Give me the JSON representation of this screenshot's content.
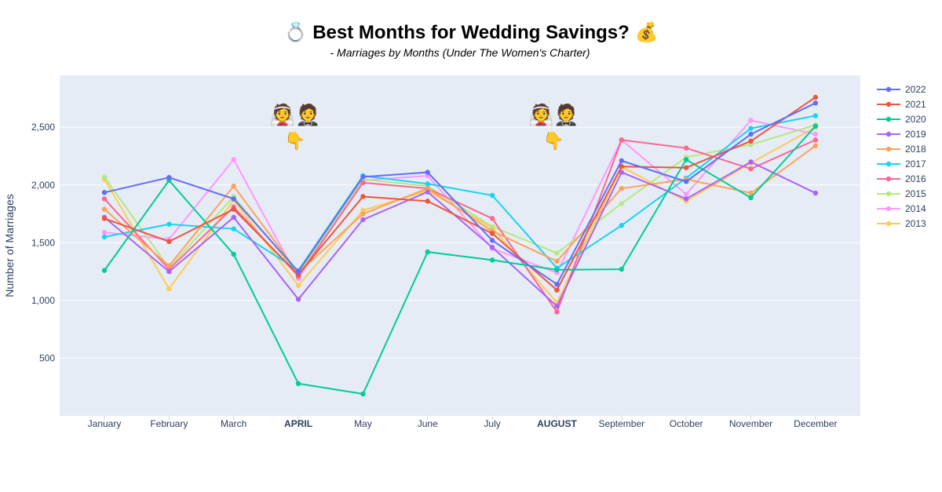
{
  "chart_data": {
    "type": "line",
    "title": "💍 Best Months for Wedding Savings? 💰",
    "subtitle": "- Marriages by Months (Under The Women's Charter)",
    "xlabel": "",
    "ylabel": "Number of Marriages",
    "categories": [
      "January",
      "February",
      "March",
      "APRIL",
      "May",
      "June",
      "July",
      "AUGUST",
      "September",
      "October",
      "November",
      "December"
    ],
    "highlighted_categories": [
      "APRIL",
      "AUGUST"
    ],
    "ylim": [
      0,
      2950
    ],
    "yticks": [
      500,
      1000,
      1500,
      2000,
      2500
    ],
    "ytick_labels": [
      "500",
      "1,000",
      "1,500",
      "2,000",
      "2,500"
    ],
    "grid": true,
    "legend_position": "right",
    "annotations": [
      {
        "category": "APRIL",
        "text": "👰🤵",
        "pointer": "👇"
      },
      {
        "category": "AUGUST",
        "text": "👰🤵",
        "pointer": "👇"
      }
    ],
    "series": [
      {
        "name": "2022",
        "color": "#636efa",
        "values": [
          1935,
          2065,
          1880,
          1250,
          2070,
          2110,
          1520,
          1140,
          2210,
          2030,
          2440,
          2710
        ]
      },
      {
        "name": "2021",
        "color": "#ef553b",
        "values": [
          1710,
          1510,
          1790,
          1225,
          1900,
          1860,
          1580,
          1090,
          2160,
          2150,
          2380,
          2760
        ]
      },
      {
        "name": "2020",
        "color": "#00cc96",
        "values": [
          1260,
          2040,
          1400,
          280,
          190,
          1420,
          1350,
          1265,
          1270,
          2220,
          1890,
          2510
        ]
      },
      {
        "name": "2019",
        "color": "#ab63fa",
        "values": [
          1720,
          1250,
          1720,
          1010,
          1700,
          1940,
          1460,
          950,
          2110,
          1880,
          2200,
          1930
        ]
      },
      {
        "name": "2018",
        "color": "#ffa15a",
        "values": [
          1790,
          1300,
          1990,
          1240,
          1750,
          1970,
          1600,
          1340,
          1970,
          2050,
          1930,
          2340
        ]
      },
      {
        "name": "2017",
        "color": "#19d3f3",
        "values": [
          1550,
          1660,
          1620,
          1260,
          2080,
          2010,
          1910,
          1280,
          1650,
          2060,
          2490,
          2600
        ]
      },
      {
        "name": "2016",
        "color": "#ff6692",
        "values": [
          1880,
          1270,
          1810,
          1210,
          2020,
          1970,
          1710,
          900,
          2390,
          2320,
          2140,
          2390
        ]
      },
      {
        "name": "2015",
        "color": "#b6e880",
        "values": [
          2070,
          1280,
          1900,
          1230,
          2050,
          1990,
          1640,
          1410,
          1840,
          2240,
          2350,
          2520
        ]
      },
      {
        "name": "2014",
        "color": "#ff97ff",
        "values": [
          1590,
          1530,
          2220,
          1190,
          2040,
          2080,
          1450,
          1240,
          2390,
          1920,
          2560,
          2440
        ]
      },
      {
        "name": "2013",
        "color": "#fecb52",
        "values": [
          2050,
          1100,
          1870,
          1130,
          1780,
          1950,
          1630,
          980,
          2160,
          1860,
          2190,
          2500
        ]
      }
    ]
  }
}
